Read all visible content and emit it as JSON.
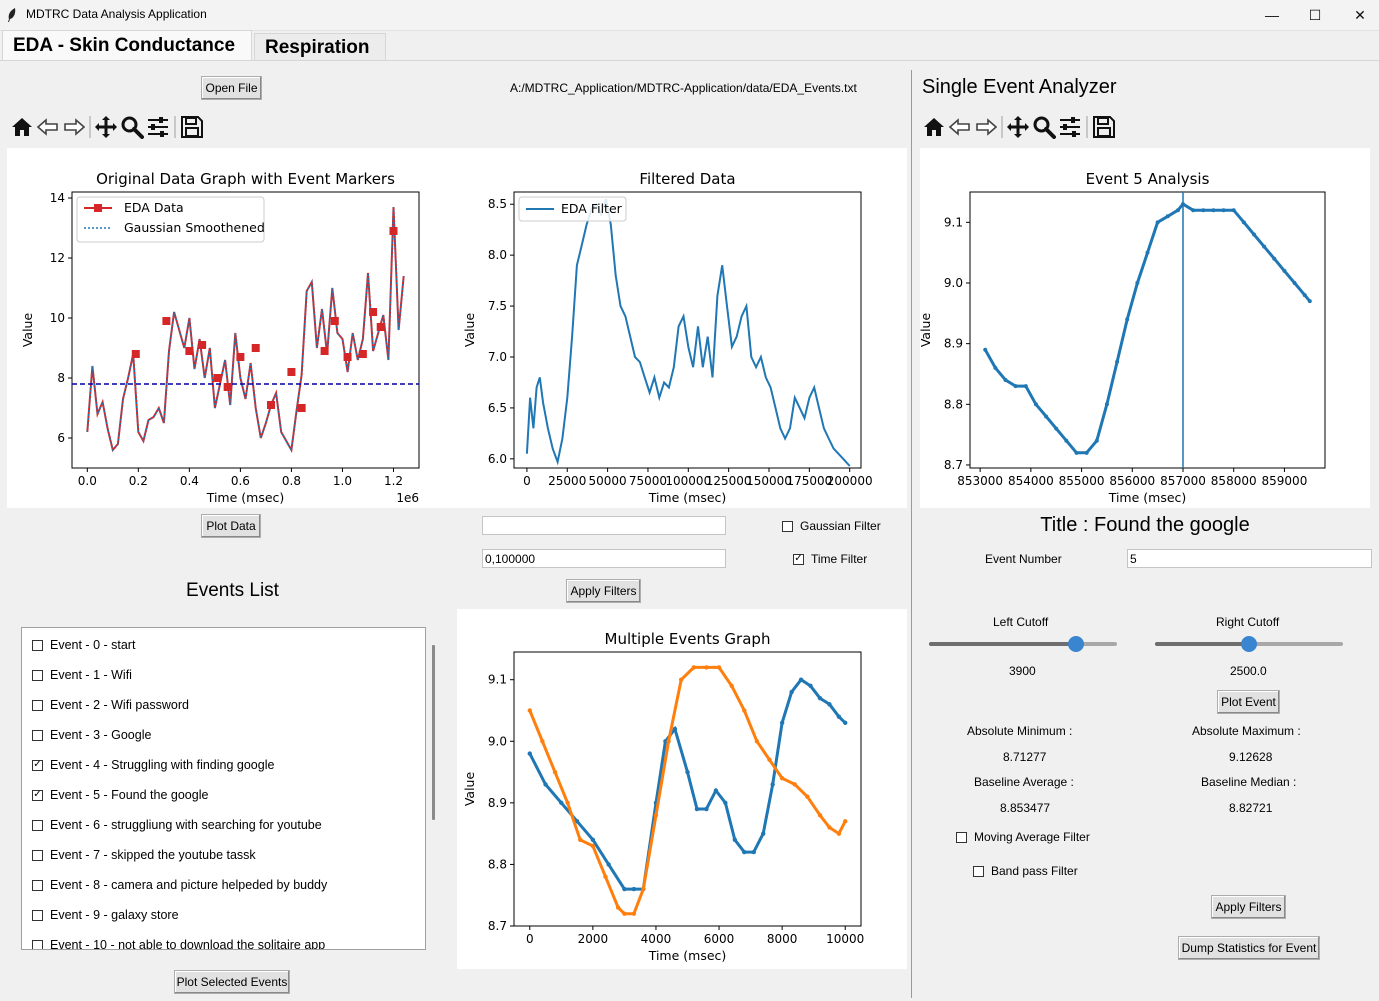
{
  "window": {
    "title": "MDTRC Data Analysis Application",
    "minimize": "—",
    "maximize": "☐",
    "close": "✕"
  },
  "tabs": [
    {
      "label": "EDA - Skin Conductance"
    },
    {
      "label": "Respiration"
    }
  ],
  "left": {
    "open_file_label": "Open File",
    "file_path": "A:/MDTRC_Application/MDTRC-Application/data/EDA_Events.txt",
    "plot_data_label": "Plot Data",
    "filter_input_1": "",
    "filter_input_2": "0,100000",
    "gaussian_filter_label": "Gaussian Filter",
    "time_filter_label": "Time Filter",
    "apply_filters_label": "Apply Filters",
    "events_title": "Events List",
    "plot_selected_label": "Plot Selected Events",
    "events": [
      {
        "label": "Event - 0 - start",
        "checked": false
      },
      {
        "label": "Event - 1 - Wifi",
        "checked": false
      },
      {
        "label": "Event - 2 - Wifi password",
        "checked": false
      },
      {
        "label": "Event - 3 - Google",
        "checked": false
      },
      {
        "label": "Event - 4 - Struggling with finding google",
        "checked": true
      },
      {
        "label": "Event - 5 - Found the google",
        "checked": true
      },
      {
        "label": "Event - 6 - struggliung with searching for youtube",
        "checked": false
      },
      {
        "label": "Event - 7 - skipped the youtube tassk",
        "checked": false
      },
      {
        "label": "Event - 8 - camera and picture helpeded by buddy",
        "checked": false
      },
      {
        "label": "Event - 9 - galaxy store",
        "checked": false
      },
      {
        "label": "Event - 10 - not able to download the solitaire app",
        "checked": false
      }
    ]
  },
  "right": {
    "header": "Single Event Analyzer",
    "event_title": "Title : Found the google",
    "event_number_label": "Event Number",
    "event_number_value": "5",
    "left_cutoff_label": "Left Cutoff",
    "left_cutoff_value": "3900",
    "left_cutoff_fraction": 0.78,
    "right_cutoff_label": "Right Cutoff",
    "right_cutoff_value": "2500.0",
    "right_cutoff_fraction": 0.5,
    "plot_event_label": "Plot Event",
    "abs_min_label": "Absolute Minimum :",
    "abs_min_value": "8.71277",
    "abs_max_label": "Absolute Maximum :",
    "abs_max_value": "9.12628",
    "baseline_avg_label": "Baseline Average :",
    "baseline_avg_value": "8.853477",
    "baseline_median_label": "Baseline Median :",
    "baseline_median_value": "8.82721",
    "moving_avg_label": "Moving Average Filter",
    "band_pass_label": "Band pass Filter",
    "apply_filters_label": "Apply Filters",
    "dump_label": "Dump Statistics for Event"
  },
  "icons": [
    "home-icon",
    "back-arrow-icon",
    "forward-arrow-icon",
    "pan-icon",
    "zoom-icon",
    "configure-icon",
    "save-icon"
  ],
  "chart_data": [
    {
      "id": "original",
      "type": "line",
      "title": "Original Data Graph with Event Markers",
      "xlabel": "Time (msec)",
      "ylabel": "Value",
      "x_offset_label": "1e6",
      "xlim": [
        -0.06,
        1.3
      ],
      "ylim": [
        5,
        14.2
      ],
      "xticks": [
        0.0,
        0.2,
        0.4,
        0.6,
        0.8,
        1.0,
        1.2
      ],
      "xtick_labels": [
        "0.0",
        "0.2",
        "0.4",
        "0.6",
        "0.8",
        "1.0",
        "1.2"
      ],
      "yticks": [
        6,
        8,
        10,
        12,
        14
      ],
      "ytick_labels": [
        "6",
        "8",
        "10",
        "12",
        "14"
      ],
      "legend": [
        "EDA Data",
        "Gaussian Smoothened"
      ],
      "legend_position": "upper-left",
      "baseline": 7.8,
      "series": [
        {
          "name": "EDA Data",
          "x": [
            0.0,
            0.02,
            0.04,
            0.06,
            0.08,
            0.1,
            0.12,
            0.14,
            0.16,
            0.18,
            0.2,
            0.22,
            0.24,
            0.26,
            0.28,
            0.3,
            0.32,
            0.34,
            0.36,
            0.38,
            0.4,
            0.42,
            0.44,
            0.46,
            0.48,
            0.5,
            0.52,
            0.54,
            0.56,
            0.58,
            0.6,
            0.62,
            0.64,
            0.66,
            0.68,
            0.7,
            0.72,
            0.74,
            0.76,
            0.78,
            0.8,
            0.82,
            0.84,
            0.86,
            0.88,
            0.9,
            0.92,
            0.94,
            0.96,
            0.98,
            1.0,
            1.02,
            1.04,
            1.06,
            1.08,
            1.1,
            1.12,
            1.14,
            1.16,
            1.18,
            1.2,
            1.22,
            1.24
          ],
          "y": [
            6.2,
            8.4,
            6.8,
            7.2,
            6.3,
            5.6,
            5.8,
            7.3,
            8.0,
            8.8,
            6.2,
            5.9,
            6.6,
            6.7,
            7.0,
            6.5,
            8.9,
            10.2,
            9.6,
            9.0,
            10.0,
            8.3,
            9.3,
            8.0,
            9.0,
            7.0,
            7.8,
            8.6,
            7.1,
            9.5,
            8.0,
            7.3,
            8.5,
            7.0,
            6.0,
            6.5,
            7.1,
            7.5,
            6.2,
            5.9,
            5.6,
            6.9,
            8.1,
            10.9,
            11.2,
            9.0,
            10.3,
            8.8,
            11.0,
            9.5,
            9.3,
            8.2,
            9.5,
            8.6,
            9.3,
            11.5,
            8.9,
            9.5,
            10.1,
            8.6,
            13.7,
            9.6,
            11.4
          ]
        },
        {
          "name": "Gaussian Smoothened"
        }
      ],
      "markers": {
        "x": [
          0.19,
          0.31,
          0.4,
          0.45,
          0.51,
          0.55,
          0.6,
          0.66,
          0.72,
          0.8,
          0.84,
          0.93,
          0.97,
          1.02,
          1.08,
          1.12,
          1.15,
          1.2
        ],
        "y": [
          8.8,
          9.9,
          8.9,
          9.1,
          8.0,
          7.7,
          8.7,
          9.0,
          7.1,
          8.2,
          7.0,
          8.9,
          9.9,
          8.7,
          8.8,
          10.2,
          9.7,
          12.9
        ]
      }
    },
    {
      "id": "filtered",
      "type": "line",
      "title": "Filtered Data",
      "xlabel": "Time (msec)",
      "ylabel": "Value",
      "xlim": [
        -8000,
        207000
      ],
      "ylim": [
        5.91,
        8.62
      ],
      "xticks": [
        0,
        25000,
        50000,
        75000,
        100000,
        125000,
        150000,
        175000,
        200000
      ],
      "xtick_labels": [
        "0",
        "25000",
        "50000",
        "75000",
        "100000",
        "125000",
        "150000",
        "175000",
        "200000"
      ],
      "yticks": [
        6.0,
        6.5,
        7.0,
        7.5,
        8.0,
        8.5
      ],
      "ytick_labels": [
        "6.0",
        "6.5",
        "7.0",
        "7.5",
        "8.0",
        "8.5"
      ],
      "legend": [
        "EDA Filter"
      ],
      "legend_position": "upper-left",
      "series": [
        {
          "name": "EDA Filter",
          "x": [
            0,
            2000,
            4000,
            6000,
            8000,
            10000,
            13000,
            16000,
            19000,
            22000,
            25000,
            28000,
            31000,
            34000,
            37000,
            40000,
            43000,
            46000,
            49000,
            52000,
            55000,
            58000,
            61000,
            64000,
            67000,
            70000,
            73000,
            76000,
            79000,
            82000,
            85000,
            88000,
            91000,
            94000,
            97000,
            100000,
            103000,
            106000,
            109000,
            112000,
            115000,
            118000,
            121000,
            124000,
            127000,
            130000,
            133000,
            136000,
            139000,
            142000,
            145000,
            148000,
            151000,
            154000,
            157000,
            160000,
            163000,
            166000,
            169000,
            172000,
            175000,
            178000,
            181000,
            184000,
            187000,
            190000,
            193000,
            196000,
            200000
          ],
          "y": [
            6.05,
            6.6,
            6.3,
            6.7,
            6.8,
            6.55,
            6.3,
            6.1,
            5.97,
            6.2,
            6.6,
            7.2,
            7.9,
            8.1,
            8.3,
            8.45,
            8.5,
            8.4,
            8.55,
            8.3,
            7.8,
            7.5,
            7.4,
            7.2,
            7.0,
            6.95,
            6.8,
            6.65,
            6.8,
            6.6,
            6.75,
            6.7,
            6.9,
            7.3,
            7.4,
            7.1,
            6.9,
            7.3,
            6.9,
            7.2,
            6.8,
            7.6,
            7.9,
            7.5,
            7.1,
            7.2,
            7.4,
            7.5,
            7.0,
            6.9,
            7.0,
            6.8,
            6.7,
            6.5,
            6.3,
            6.2,
            6.3,
            6.6,
            6.5,
            6.4,
            6.6,
            6.7,
            6.5,
            6.3,
            6.2,
            6.1,
            6.05,
            6.0,
            5.93
          ]
        }
      ]
    },
    {
      "id": "multiple",
      "type": "line",
      "title": "Multiple Events Graph",
      "xlabel": "Time (msec)",
      "ylabel": "Value",
      "xlim": [
        -500,
        10500
      ],
      "ylim": [
        8.7,
        9.145
      ],
      "xticks": [
        0,
        2000,
        4000,
        6000,
        8000,
        10000
      ],
      "xtick_labels": [
        "0",
        "2000",
        "4000",
        "6000",
        "8000",
        "10000"
      ],
      "yticks": [
        8.7,
        8.8,
        8.9,
        9.0,
        9.1
      ],
      "ytick_labels": [
        "8.7",
        "8.8",
        "8.9",
        "9.0",
        "9.1"
      ],
      "series": [
        {
          "color": "#1f77b4",
          "x": [
            0,
            500,
            1000,
            1500,
            2000,
            2500,
            3000,
            3300,
            3600,
            4000,
            4300,
            4600,
            5000,
            5300,
            5600,
            5900,
            6200,
            6500,
            6800,
            7100,
            7400,
            7700,
            8000,
            8300,
            8600,
            8900,
            9200,
            9500,
            9800,
            10000
          ],
          "y": [
            8.98,
            8.93,
            8.9,
            8.87,
            8.84,
            8.8,
            8.76,
            8.76,
            8.76,
            8.9,
            9.0,
            9.02,
            8.95,
            8.89,
            8.89,
            8.92,
            8.9,
            8.84,
            8.82,
            8.82,
            8.85,
            8.93,
            9.03,
            9.08,
            9.1,
            9.09,
            9.07,
            9.06,
            9.04,
            9.03
          ]
        },
        {
          "color": "#ff7f0e",
          "x": [
            0,
            400,
            800,
            1200,
            1600,
            2000,
            2400,
            2800,
            3000,
            3300,
            3600,
            4000,
            4400,
            4800,
            5200,
            5600,
            6000,
            6400,
            6800,
            7200,
            7600,
            8000,
            8400,
            8800,
            9200,
            9500,
            9800,
            10000
          ],
          "y": [
            9.05,
            9.0,
            8.95,
            8.9,
            8.84,
            8.83,
            8.78,
            8.73,
            8.72,
            8.72,
            8.76,
            8.88,
            9.0,
            9.1,
            9.12,
            9.12,
            9.12,
            9.09,
            9.05,
            9.0,
            8.97,
            8.94,
            8.93,
            8.91,
            8.88,
            8.86,
            8.85,
            8.87
          ]
        }
      ]
    },
    {
      "id": "single",
      "type": "line",
      "title": "Event 5 Analysis",
      "xlabel": "Time (msec)",
      "ylabel": "Value",
      "xlim": [
        852800,
        859800
      ],
      "ylim": [
        8.695,
        9.15
      ],
      "xticks": [
        853000,
        854000,
        855000,
        856000,
        857000,
        858000,
        859000
      ],
      "xtick_labels": [
        "853000",
        "854000",
        "855000",
        "856000",
        "857000",
        "858000",
        "859000"
      ],
      "yticks": [
        8.7,
        8.8,
        8.9,
        9.0,
        9.1
      ],
      "ytick_labels": [
        "8.7",
        "8.8",
        "8.9",
        "9.0",
        "9.1"
      ],
      "vline": 857000,
      "series": [
        {
          "color": "#1f77b4",
          "x": [
            853100,
            853300,
            853500,
            853700,
            853900,
            854100,
            854300,
            854500,
            854700,
            854900,
            855100,
            855300,
            855500,
            855700,
            855900,
            856100,
            856300,
            856500,
            856700,
            856900,
            857000,
            857200,
            857400,
            857600,
            857800,
            858000,
            858200,
            858400,
            858600,
            858800,
            859000,
            859200,
            859400,
            859500
          ],
          "y": [
            8.89,
            8.86,
            8.84,
            8.83,
            8.83,
            8.8,
            8.78,
            8.76,
            8.74,
            8.72,
            8.72,
            8.74,
            8.8,
            8.87,
            8.94,
            9.0,
            9.05,
            9.1,
            9.11,
            9.12,
            9.13,
            9.12,
            9.12,
            9.12,
            9.12,
            9.12,
            9.1,
            9.08,
            9.06,
            9.04,
            9.02,
            9.0,
            8.98,
            8.97
          ]
        }
      ]
    }
  ]
}
